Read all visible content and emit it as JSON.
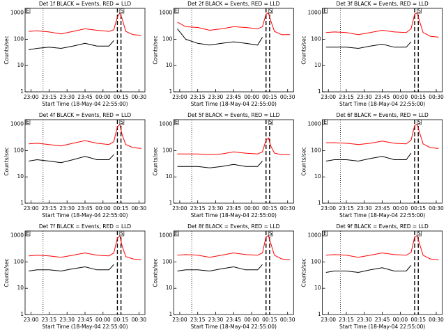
{
  "chart_data": [
    {
      "type": "line",
      "title": "Det 1f BLACK = Events, RED = LLD",
      "xlabel": "Start Time (18-May-04 22:55:00)",
      "ylabel": "Counts/sec",
      "log_y": true,
      "x": [
        3,
        10,
        20,
        30,
        40,
        50,
        60,
        70,
        74,
        77,
        79,
        81,
        84,
        90,
        97
      ],
      "xlim": [
        0,
        100
      ],
      "xticks": [
        {
          "value": 5,
          "label": "23:00"
        },
        {
          "value": 20,
          "label": "23:15"
        },
        {
          "value": 35,
          "label": "23:30"
        },
        {
          "value": 50,
          "label": "23:45"
        },
        {
          "value": 65,
          "label": "00:00"
        },
        {
          "value": 80,
          "label": "00:15"
        },
        {
          "value": 95,
          "label": "00:30"
        }
      ],
      "ylim": [
        1,
        1500
      ],
      "yticks": [
        1,
        10,
        100,
        1000
      ],
      "vlines": [
        {
          "x": 15,
          "style": "dotted"
        },
        {
          "x": 77,
          "style": "dashed"
        },
        {
          "x": 80,
          "style": "dashed"
        }
      ],
      "annotations": [
        {
          "text": "E",
          "x": 0
        },
        {
          "text": "S",
          "x": 79
        }
      ],
      "series": [
        {
          "color": "#ff0000",
          "values": [
            200,
            210,
            190,
            160,
            200,
            250,
            220,
            200,
            230,
            700,
            1000,
            600,
            200,
            150,
            140
          ]
        },
        {
          "color": "#000000",
          "values": [
            40,
            45,
            50,
            45,
            55,
            70,
            55,
            55,
            90,
            null,
            null,
            null,
            null,
            null,
            null
          ]
        }
      ]
    },
    {
      "type": "line",
      "title": "Det 2f BLACK = Events, RED = LLD",
      "xlabel": "Start Time (18-May-04 22:55:00)",
      "ylabel": "Counts/sec",
      "log_y": true,
      "x": [
        3,
        10,
        20,
        30,
        40,
        50,
        60,
        70,
        74,
        77,
        79,
        81,
        84,
        90,
        97
      ],
      "xlim": [
        0,
        100
      ],
      "xticks": [
        {
          "value": 5,
          "label": "23:00"
        },
        {
          "value": 20,
          "label": "23:15"
        },
        {
          "value": 35,
          "label": "23:30"
        },
        {
          "value": 50,
          "label": "23:45"
        },
        {
          "value": 65,
          "label": "00:00"
        },
        {
          "value": 80,
          "label": "00:15"
        },
        {
          "value": 95,
          "label": "00:30"
        }
      ],
      "ylim": [
        1,
        1500
      ],
      "yticks": [
        1,
        10,
        100,
        1000
      ],
      "vlines": [
        {
          "x": 15,
          "style": "dotted"
        },
        {
          "x": 77,
          "style": "dashed"
        },
        {
          "x": 80,
          "style": "dashed"
        }
      ],
      "annotations": [
        {
          "text": "E",
          "x": 0
        },
        {
          "text": "S",
          "x": 79
        }
      ],
      "series": [
        {
          "color": "#ff0000",
          "values": [
            450,
            300,
            280,
            220,
            250,
            300,
            280,
            250,
            300,
            900,
            1000,
            500,
            200,
            150,
            150
          ]
        },
        {
          "color": "#000000",
          "values": [
            250,
            100,
            70,
            60,
            70,
            80,
            70,
            60,
            120,
            null,
            null,
            null,
            null,
            null,
            null
          ]
        }
      ]
    },
    {
      "type": "line",
      "title": "Det 3f BLACK = Events, RED = LLD",
      "xlabel": "Start Time (18-May-04 22:55:00)",
      "ylabel": "Counts/sec",
      "log_y": true,
      "x": [
        3,
        10,
        20,
        30,
        40,
        50,
        60,
        70,
        74,
        77,
        79,
        81,
        84,
        90,
        97
      ],
      "xlim": [
        0,
        100
      ],
      "xticks": [
        {
          "value": 5,
          "label": "23:00"
        },
        {
          "value": 20,
          "label": "23:15"
        },
        {
          "value": 35,
          "label": "23:30"
        },
        {
          "value": 50,
          "label": "23:45"
        },
        {
          "value": 65,
          "label": "00:00"
        },
        {
          "value": 80,
          "label": "00:15"
        },
        {
          "value": 95,
          "label": "00:30"
        }
      ],
      "ylim": [
        1,
        1500
      ],
      "yticks": [
        1,
        10,
        100,
        1000
      ],
      "vlines": [
        {
          "x": 15,
          "style": "dotted"
        },
        {
          "x": 77,
          "style": "dashed"
        },
        {
          "x": 80,
          "style": "dashed"
        }
      ],
      "annotations": [
        {
          "text": "E",
          "x": 0
        },
        {
          "text": "S",
          "x": 79
        }
      ],
      "series": [
        {
          "color": "#ff0000",
          "values": [
            180,
            190,
            180,
            150,
            180,
            220,
            190,
            180,
            250,
            900,
            1000,
            500,
            180,
            130,
            120
          ]
        },
        {
          "color": "#000000",
          "values": [
            50,
            50,
            50,
            45,
            55,
            65,
            50,
            50,
            80,
            null,
            null,
            null,
            null,
            null,
            null
          ]
        }
      ]
    },
    {
      "type": "line",
      "title": "Det 4f BLACK = Events, RED = LLD",
      "xlabel": "Start Time (18-May-04 22:55:00)",
      "ylabel": "Counts/sec",
      "log_y": true,
      "x": [
        3,
        10,
        20,
        30,
        40,
        50,
        60,
        70,
        74,
        77,
        79,
        81,
        84,
        90,
        97
      ],
      "xlim": [
        0,
        100
      ],
      "xticks": [
        {
          "value": 5,
          "label": "23:00"
        },
        {
          "value": 20,
          "label": "23:15"
        },
        {
          "value": 35,
          "label": "23:30"
        },
        {
          "value": 50,
          "label": "23:45"
        },
        {
          "value": 65,
          "label": "00:00"
        },
        {
          "value": 80,
          "label": "00:15"
        },
        {
          "value": 95,
          "label": "00:30"
        }
      ],
      "ylim": [
        1,
        1500
      ],
      "yticks": [
        1,
        10,
        100,
        1000
      ],
      "vlines": [
        {
          "x": 15,
          "style": "dotted"
        },
        {
          "x": 77,
          "style": "dashed"
        },
        {
          "x": 80,
          "style": "dashed"
        }
      ],
      "annotations": [
        {
          "text": "E",
          "x": 0
        },
        {
          "text": "S",
          "x": 79
        }
      ],
      "series": [
        {
          "color": "#ff0000",
          "values": [
            180,
            190,
            170,
            150,
            190,
            240,
            190,
            170,
            220,
            800,
            1000,
            400,
            170,
            130,
            120
          ]
        },
        {
          "color": "#000000",
          "values": [
            40,
            45,
            40,
            35,
            45,
            60,
            45,
            45,
            70,
            null,
            null,
            null,
            null,
            null,
            null
          ]
        }
      ]
    },
    {
      "type": "line",
      "title": "Det 5f BLACK = Events, RED = LLD",
      "xlabel": "Start Time (18-May-04 22:55:00)",
      "ylabel": "Counts/sec",
      "log_y": true,
      "x": [
        3,
        10,
        20,
        30,
        40,
        50,
        60,
        70,
        74,
        77,
        79,
        81,
        84,
        90,
        97
      ],
      "xlim": [
        0,
        100
      ],
      "xticks": [
        {
          "value": 5,
          "label": "23:00"
        },
        {
          "value": 20,
          "label": "23:15"
        },
        {
          "value": 35,
          "label": "23:30"
        },
        {
          "value": 50,
          "label": "23:45"
        },
        {
          "value": 65,
          "label": "00:00"
        },
        {
          "value": 80,
          "label": "00:15"
        },
        {
          "value": 95,
          "label": "00:30"
        }
      ],
      "ylim": [
        1,
        1500
      ],
      "yticks": [
        1,
        10,
        100,
        1000
      ],
      "vlines": [
        {
          "x": 15,
          "style": "dotted"
        },
        {
          "x": 77,
          "style": "dashed"
        },
        {
          "x": 80,
          "style": "dashed"
        }
      ],
      "annotations": [
        {
          "text": "E",
          "x": 0
        },
        {
          "text": "S",
          "x": 79
        }
      ],
      "series": [
        {
          "color": "#ff0000",
          "values": [
            75,
            75,
            75,
            70,
            75,
            90,
            80,
            75,
            90,
            250,
            300,
            150,
            80,
            70,
            70
          ]
        },
        {
          "color": "#000000",
          "values": [
            25,
            25,
            25,
            22,
            25,
            30,
            25,
            25,
            40,
            null,
            null,
            null,
            null,
            null,
            null
          ]
        }
      ]
    },
    {
      "type": "line",
      "title": "Det 6f BLACK = Events, RED = LLD",
      "xlabel": "Start Time (18-May-04 22:55:00)",
      "ylabel": "Counts/sec",
      "log_y": true,
      "x": [
        3,
        10,
        20,
        30,
        40,
        50,
        60,
        70,
        74,
        77,
        79,
        81,
        84,
        90,
        97
      ],
      "xlim": [
        0,
        100
      ],
      "xticks": [
        {
          "value": 5,
          "label": "23:00"
        },
        {
          "value": 20,
          "label": "23:15"
        },
        {
          "value": 35,
          "label": "23:30"
        },
        {
          "value": 50,
          "label": "23:45"
        },
        {
          "value": 65,
          "label": "00:00"
        },
        {
          "value": 80,
          "label": "00:15"
        },
        {
          "value": 95,
          "label": "00:30"
        }
      ],
      "ylim": [
        1,
        1500
      ],
      "yticks": [
        1,
        10,
        100,
        1000
      ],
      "vlines": [
        {
          "x": 15,
          "style": "dotted"
        },
        {
          "x": 77,
          "style": "dashed"
        },
        {
          "x": 80,
          "style": "dashed"
        }
      ],
      "annotations": [
        {
          "text": "E",
          "x": 0
        },
        {
          "text": "S",
          "x": 79
        }
      ],
      "series": [
        {
          "color": "#ff0000",
          "values": [
            200,
            200,
            190,
            170,
            190,
            230,
            190,
            180,
            250,
            900,
            1000,
            500,
            180,
            130,
            120
          ]
        },
        {
          "color": "#000000",
          "values": [
            40,
            45,
            45,
            40,
            50,
            60,
            45,
            45,
            80,
            null,
            null,
            null,
            null,
            null,
            null
          ]
        }
      ]
    },
    {
      "type": "line",
      "title": "Det 7f BLACK = Events, RED = LLD",
      "xlabel": "Start Time (18-May-04 22:55:00)",
      "ylabel": "Counts/sec",
      "log_y": true,
      "x": [
        3,
        10,
        20,
        30,
        40,
        50,
        60,
        70,
        74,
        77,
        79,
        81,
        84,
        90,
        97
      ],
      "xlim": [
        0,
        100
      ],
      "xticks": [
        {
          "value": 5,
          "label": "23:00"
        },
        {
          "value": 20,
          "label": "23:15"
        },
        {
          "value": 35,
          "label": "23:30"
        },
        {
          "value": 50,
          "label": "23:45"
        },
        {
          "value": 65,
          "label": "00:00"
        },
        {
          "value": 80,
          "label": "00:15"
        },
        {
          "value": 95,
          "label": "00:30"
        }
      ],
      "ylim": [
        1,
        1500
      ],
      "yticks": [
        1,
        10,
        100,
        1000
      ],
      "vlines": [
        {
          "x": 15,
          "style": "dotted"
        },
        {
          "x": 77,
          "style": "dashed"
        },
        {
          "x": 80,
          "style": "dashed"
        }
      ],
      "annotations": [
        {
          "text": "E",
          "x": 0
        },
        {
          "text": "S",
          "x": 79
        }
      ],
      "series": [
        {
          "color": "#ff0000",
          "values": [
            170,
            180,
            170,
            150,
            180,
            220,
            180,
            170,
            220,
            800,
            1000,
            400,
            160,
            130,
            120
          ]
        },
        {
          "color": "#000000",
          "values": [
            45,
            50,
            50,
            45,
            55,
            65,
            50,
            50,
            80,
            null,
            null,
            null,
            null,
            null,
            null
          ]
        }
      ]
    },
    {
      "type": "line",
      "title": "Det 8f BLACK = Events, RED = LLD",
      "xlabel": "Start Time (18-May-04 22:55:00)",
      "ylabel": "Counts/sec",
      "log_y": true,
      "x": [
        3,
        10,
        20,
        30,
        40,
        50,
        60,
        70,
        74,
        77,
        79,
        81,
        84,
        90,
        97
      ],
      "xlim": [
        0,
        100
      ],
      "xticks": [
        {
          "value": 5,
          "label": "23:00"
        },
        {
          "value": 20,
          "label": "23:15"
        },
        {
          "value": 35,
          "label": "23:30"
        },
        {
          "value": 50,
          "label": "23:45"
        },
        {
          "value": 65,
          "label": "00:00"
        },
        {
          "value": 80,
          "label": "00:15"
        },
        {
          "value": 95,
          "label": "00:30"
        }
      ],
      "ylim": [
        1,
        1500
      ],
      "yticks": [
        1,
        10,
        100,
        1000
      ],
      "vlines": [
        {
          "x": 15,
          "style": "dotted"
        },
        {
          "x": 77,
          "style": "dashed"
        },
        {
          "x": 80,
          "style": "dashed"
        }
      ],
      "annotations": [
        {
          "text": "E",
          "x": 0
        },
        {
          "text": "S",
          "x": 79
        }
      ],
      "series": [
        {
          "color": "#ff0000",
          "values": [
            180,
            190,
            180,
            150,
            180,
            220,
            190,
            180,
            220,
            900,
            1000,
            500,
            180,
            130,
            120
          ]
        },
        {
          "color": "#000000",
          "values": [
            45,
            50,
            50,
            45,
            55,
            65,
            50,
            50,
            80,
            null,
            null,
            null,
            null,
            null,
            null
          ]
        }
      ]
    },
    {
      "type": "line",
      "title": "Det 9f BLACK = Events, RED = LLD",
      "xlabel": "Start Time (18-May-04 22:55:00)",
      "ylabel": "Counts/sec",
      "log_y": true,
      "x": [
        3,
        10,
        20,
        30,
        40,
        50,
        60,
        70,
        74,
        77,
        79,
        81,
        84,
        90,
        97
      ],
      "xlim": [
        0,
        100
      ],
      "xticks": [
        {
          "value": 5,
          "label": "23:00"
        },
        {
          "value": 20,
          "label": "23:15"
        },
        {
          "value": 35,
          "label": "23:30"
        },
        {
          "value": 50,
          "label": "23:45"
        },
        {
          "value": 65,
          "label": "00:00"
        },
        {
          "value": 80,
          "label": "00:15"
        },
        {
          "value": 95,
          "label": "00:30"
        }
      ],
      "ylim": [
        1,
        1500
      ],
      "yticks": [
        1,
        10,
        100,
        1000
      ],
      "vlines": [
        {
          "x": 15,
          "style": "dotted"
        },
        {
          "x": 77,
          "style": "dashed"
        },
        {
          "x": 80,
          "style": "dashed"
        }
      ],
      "annotations": [
        {
          "text": "E",
          "x": 0
        },
        {
          "text": "S",
          "x": 79
        }
      ],
      "series": [
        {
          "color": "#ff0000",
          "values": [
            180,
            190,
            180,
            150,
            180,
            220,
            190,
            180,
            230,
            900,
            1000,
            500,
            180,
            130,
            120
          ]
        },
        {
          "color": "#000000",
          "values": [
            40,
            45,
            45,
            40,
            50,
            60,
            45,
            45,
            75,
            null,
            null,
            null,
            null,
            null,
            null
          ]
        }
      ]
    }
  ]
}
